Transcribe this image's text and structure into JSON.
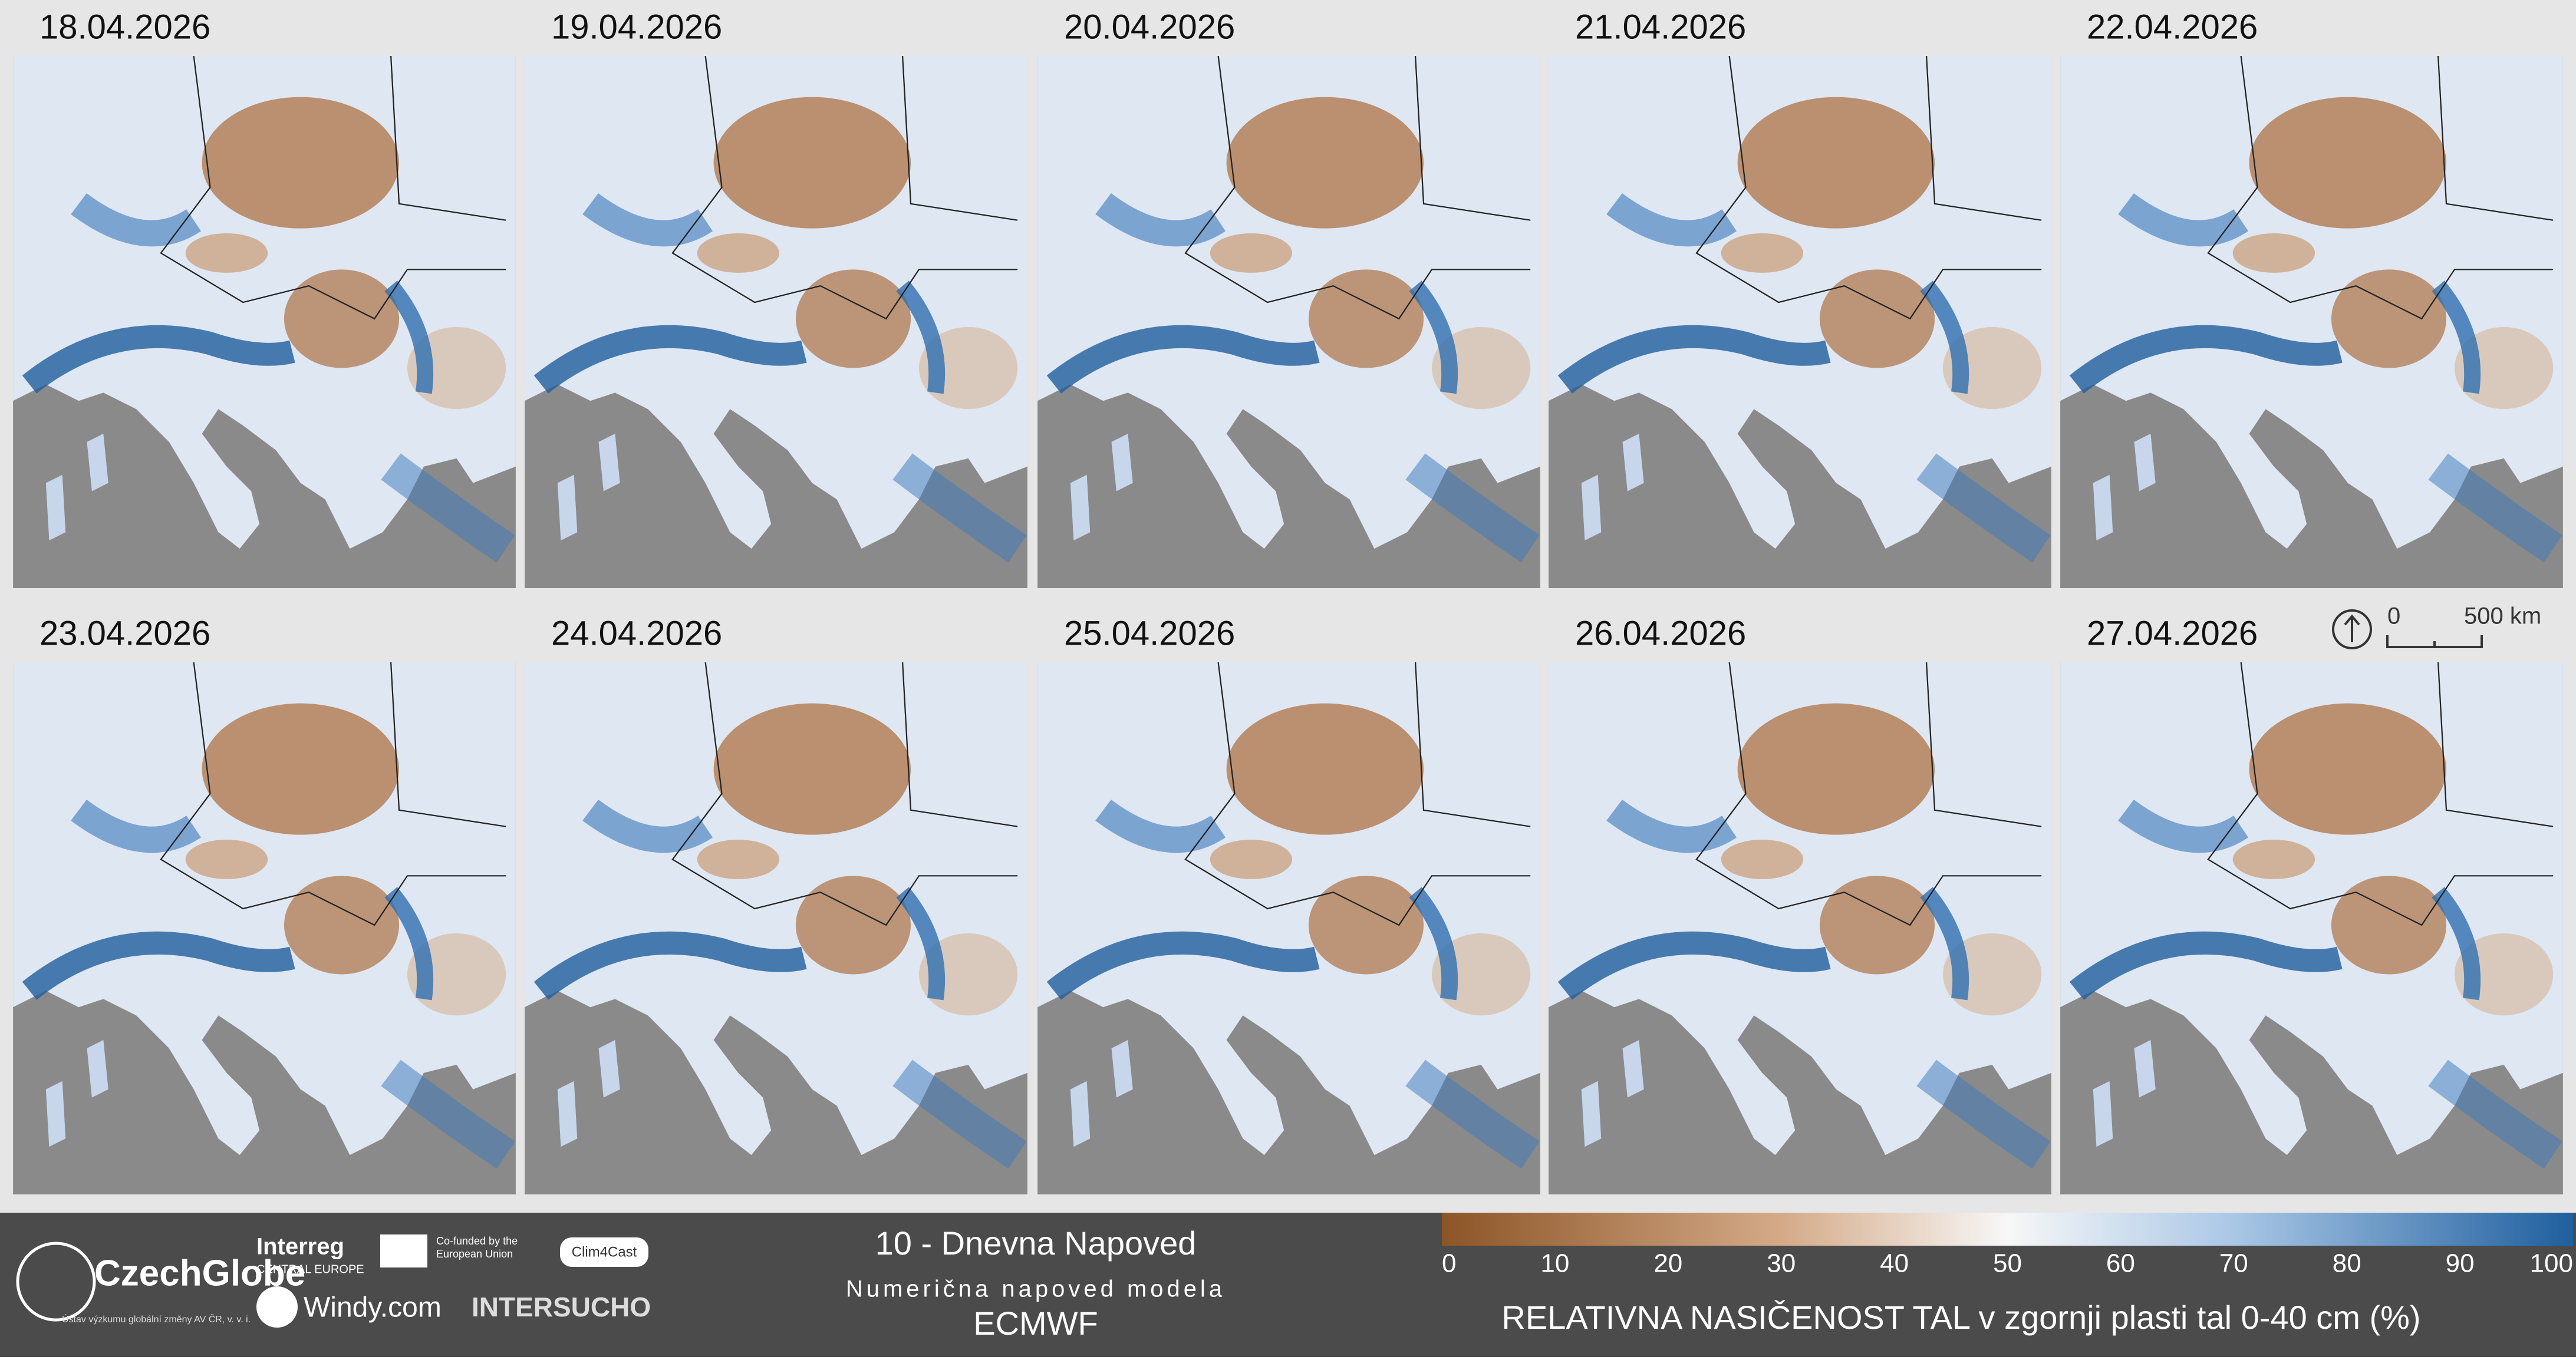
{
  "panels": [
    {
      "date": "18.04.2026"
    },
    {
      "date": "19.04.2026"
    },
    {
      "date": "20.04.2026"
    },
    {
      "date": "21.04.2026"
    },
    {
      "date": "22.04.2026"
    },
    {
      "date": "23.04.2026"
    },
    {
      "date": "24.04.2026"
    },
    {
      "date": "25.04.2026"
    },
    {
      "date": "26.04.2026"
    },
    {
      "date": "27.04.2026"
    }
  ],
  "scale_bar": {
    "start": "0",
    "end": "500 km"
  },
  "footer": {
    "logos": {
      "czechglobe": "CzechGlobe",
      "czechglobe_sub": "Ústav výzkumu globální změny AV ČR, v. v. i.",
      "interreg": "Interreg",
      "interreg_sub": "CENTRAL EUROPE",
      "eu": "Co-funded by the European Union",
      "clim4cast": "Clim4Cast",
      "windy": "Windy.com",
      "intersucho": "INTERSUCHO"
    },
    "title": "10 - Dnevna Napoved",
    "subtitle": "Numerična napoved modela",
    "model": "ECMWF"
  },
  "colorbar": {
    "ticks": [
      0,
      10,
      20,
      30,
      40,
      50,
      60,
      70,
      80,
      90,
      100
    ],
    "label": "RELATIVNA NASIČENOST TAL v zgornji plasti tal 0-40 cm (%)"
  }
}
